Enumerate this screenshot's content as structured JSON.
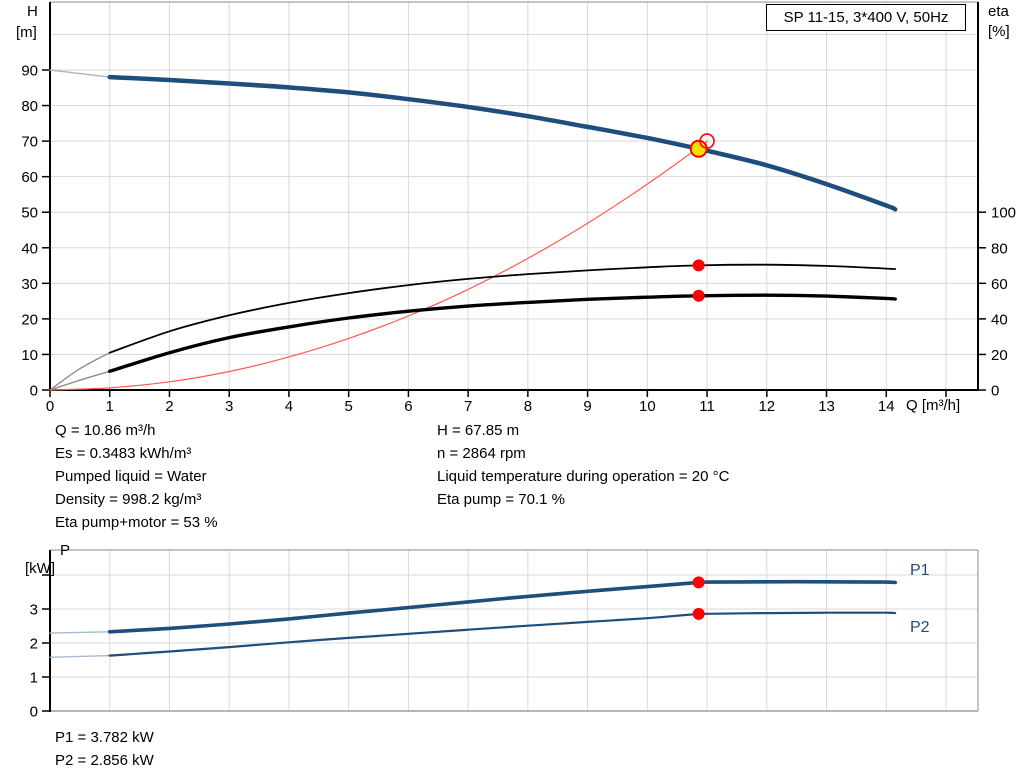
{
  "title_box": {
    "label": "SP 11-15, 3*400 V, 50Hz"
  },
  "colors": {
    "navy": "#1d4e7c",
    "navy_light": "#a9b9cd",
    "black": "#000000",
    "gray_pre": "#8c8c8c",
    "red_line": "#ff5a50",
    "red_dot": "#ff0000",
    "yellow": "#ffdf00",
    "grid": "#d9d9d9",
    "frame": "#8a8a8a",
    "axis": "#000000",
    "label_blue": "#1d4e7c"
  },
  "axis_labels": {
    "h": "H",
    "h_unit": "[m]",
    "eta": "eta",
    "eta_unit": "[%]",
    "q": "Q [m³/h]",
    "p": "P",
    "p_unit": "[kW]"
  },
  "info_panel": {
    "left": [
      "Q = 10.86 m³/h",
      "Es = 0.3483 kWh/m³",
      "Pumped liquid = Water",
      "Density = 998.2 kg/m³",
      "Eta pump+motor = 53 %"
    ],
    "right": [
      "H = 67.85 m",
      "n = 2864 rpm",
      "Liquid temperature during operation = 20 °C",
      "Eta pump = 70.1 %"
    ]
  },
  "power_readout": [
    "P1 = 3.782 kW",
    "P2 = 2.856 kW"
  ],
  "chart_data": [
    {
      "id": "qh-eta",
      "type": "line",
      "title": "SP 11-15, 3*400 V, 50Hz",
      "xlabel": "Q [m³/h]",
      "ylabel": "H [m]",
      "ylabel_right": "eta [%]",
      "x_axis": {
        "min": 0,
        "max": 15.5,
        "ticks": [
          0,
          1,
          2,
          3,
          4,
          5,
          6,
          7,
          8,
          9,
          10,
          11,
          12,
          13,
          14
        ],
        "extra_tick": 15,
        "grid": true
      },
      "y_axis_left": {
        "min": 0,
        "max": 109,
        "ticks": [
          0,
          10,
          20,
          30,
          40,
          50,
          60,
          70,
          80,
          90
        ],
        "grid_to": 100
      },
      "y_axis_right": {
        "min": 0,
        "max": 218,
        "ticks": [
          0,
          20,
          40,
          60,
          80,
          100
        ]
      },
      "legend": "none",
      "series": [
        {
          "name": "head-curve",
          "axis": "left",
          "color_key": "navy",
          "width": 4.5,
          "split_q": 1,
          "points": [
            [
              0,
              90
            ],
            [
              1,
              88
            ],
            [
              2,
              87.2
            ],
            [
              3,
              86.2
            ],
            [
              4,
              85.1
            ],
            [
              5,
              83.7
            ],
            [
              6,
              81.8
            ],
            [
              7,
              79.6
            ],
            [
              8,
              77
            ],
            [
              9,
              74
            ],
            [
              10,
              70.9
            ],
            [
              10.86,
              67.85
            ],
            [
              11,
              67.3
            ],
            [
              12,
              63.2
            ],
            [
              13,
              57.9
            ],
            [
              14,
              51.9
            ],
            [
              14.15,
              50.8
            ]
          ]
        },
        {
          "name": "system-curve",
          "axis": "left",
          "color_key": "red_line",
          "width": 1.2,
          "points": [
            [
              0,
              0
            ],
            [
              1,
              0.6
            ],
            [
              2,
              2.3
            ],
            [
              3,
              5.2
            ],
            [
              4,
              9.3
            ],
            [
              5,
              14.5
            ],
            [
              6,
              20.8
            ],
            [
              7,
              28.3
            ],
            [
              8,
              37
            ],
            [
              9,
              46.9
            ],
            [
              10,
              57.9
            ],
            [
              10.86,
              68.2
            ],
            [
              11,
              70
            ]
          ]
        },
        {
          "name": "eta-pump-curve",
          "axis": "right",
          "color_key": "black",
          "width": 1.8,
          "split_q": 1,
          "points": [
            [
              0,
              0
            ],
            [
              0.5,
              12
            ],
            [
              1,
              21
            ],
            [
              2,
              33
            ],
            [
              3,
              42
            ],
            [
              4,
              49
            ],
            [
              5,
              54.5
            ],
            [
              6,
              59
            ],
            [
              7,
              62.5
            ],
            [
              8,
              65.2
            ],
            [
              9,
              67.3
            ],
            [
              10,
              69
            ],
            [
              10.86,
              70.1
            ],
            [
              12,
              70.5
            ],
            [
              13,
              69.8
            ],
            [
              14,
              68.3
            ],
            [
              14.15,
              68
            ]
          ]
        },
        {
          "name": "eta-pump-motor-curve",
          "axis": "right",
          "color_key": "black",
          "width": 3.4,
          "split_q": 1,
          "points": [
            [
              0,
              0
            ],
            [
              0.5,
              5.5
            ],
            [
              1,
              10.5
            ],
            [
              2,
              21
            ],
            [
              3,
              29.5
            ],
            [
              4,
              35.5
            ],
            [
              5,
              40.5
            ],
            [
              6,
              44.3
            ],
            [
              7,
              47.2
            ],
            [
              8,
              49.3
            ],
            [
              9,
              51
            ],
            [
              10,
              52.2
            ],
            [
              10.86,
              53
            ],
            [
              12,
              53.3
            ],
            [
              13,
              52.8
            ],
            [
              14,
              51.5
            ],
            [
              14.15,
              51.2
            ]
          ]
        }
      ],
      "markers": [
        {
          "name": "duty-point",
          "axis": "left",
          "x": 10.86,
          "y": 67.85,
          "style": "yellow"
        },
        {
          "name": "rated-point",
          "axis": "left",
          "x": 11,
          "y": 70,
          "style": "open"
        },
        {
          "name": "eta-pump-duty-point",
          "axis": "right",
          "x": 10.86,
          "y": 70.1,
          "style": "red"
        },
        {
          "name": "eta-total-duty-point",
          "axis": "right",
          "x": 10.86,
          "y": 53,
          "style": "red"
        }
      ]
    },
    {
      "id": "power",
      "type": "line",
      "title": "",
      "xlabel": "Q [m³/h]",
      "ylabel": "P [kW]",
      "x_axis": {
        "min": 0,
        "max": 15.5,
        "ticks": [],
        "grid": true
      },
      "y_axis_left": {
        "min": 0,
        "max": 4.74,
        "ticks": [
          0,
          1,
          2,
          3
        ],
        "extra_tick": 4,
        "grid_to": 4
      },
      "series": [
        {
          "name": "P1",
          "axis": "left",
          "color_key": "navy",
          "width": 3.6,
          "split_q": 1,
          "points": [
            [
              0,
              2.29
            ],
            [
              1,
              2.33
            ],
            [
              2,
              2.43
            ],
            [
              3,
              2.56
            ],
            [
              4,
              2.71
            ],
            [
              5,
              2.88
            ],
            [
              6,
              3.04
            ],
            [
              7,
              3.21
            ],
            [
              8,
              3.37
            ],
            [
              9,
              3.52
            ],
            [
              10,
              3.66
            ],
            [
              10.86,
              3.782
            ],
            [
              11,
              3.79
            ],
            [
              12,
              3.8
            ],
            [
              13,
              3.8
            ],
            [
              14,
              3.79
            ],
            [
              14.15,
              3.78
            ]
          ]
        },
        {
          "name": "P2",
          "axis": "left",
          "color_key": "navy",
          "width": 2.2,
          "split_q": 1,
          "points": [
            [
              0,
              1.58
            ],
            [
              1,
              1.63
            ],
            [
              2,
              1.75
            ],
            [
              3,
              1.88
            ],
            [
              4,
              2.02
            ],
            [
              5,
              2.15
            ],
            [
              6,
              2.27
            ],
            [
              7,
              2.39
            ],
            [
              8,
              2.51
            ],
            [
              9,
              2.62
            ],
            [
              10,
              2.73
            ],
            [
              10.86,
              2.856
            ],
            [
              11,
              2.86
            ],
            [
              12,
              2.88
            ],
            [
              13,
              2.89
            ],
            [
              14,
              2.89
            ],
            [
              14.15,
              2.88
            ]
          ]
        }
      ],
      "markers": [
        {
          "name": "p1-duty-point",
          "axis": "left",
          "x": 10.86,
          "y": 3.782,
          "style": "red"
        },
        {
          "name": "p2-duty-point",
          "axis": "left",
          "x": 10.86,
          "y": 2.856,
          "style": "red"
        }
      ]
    }
  ]
}
